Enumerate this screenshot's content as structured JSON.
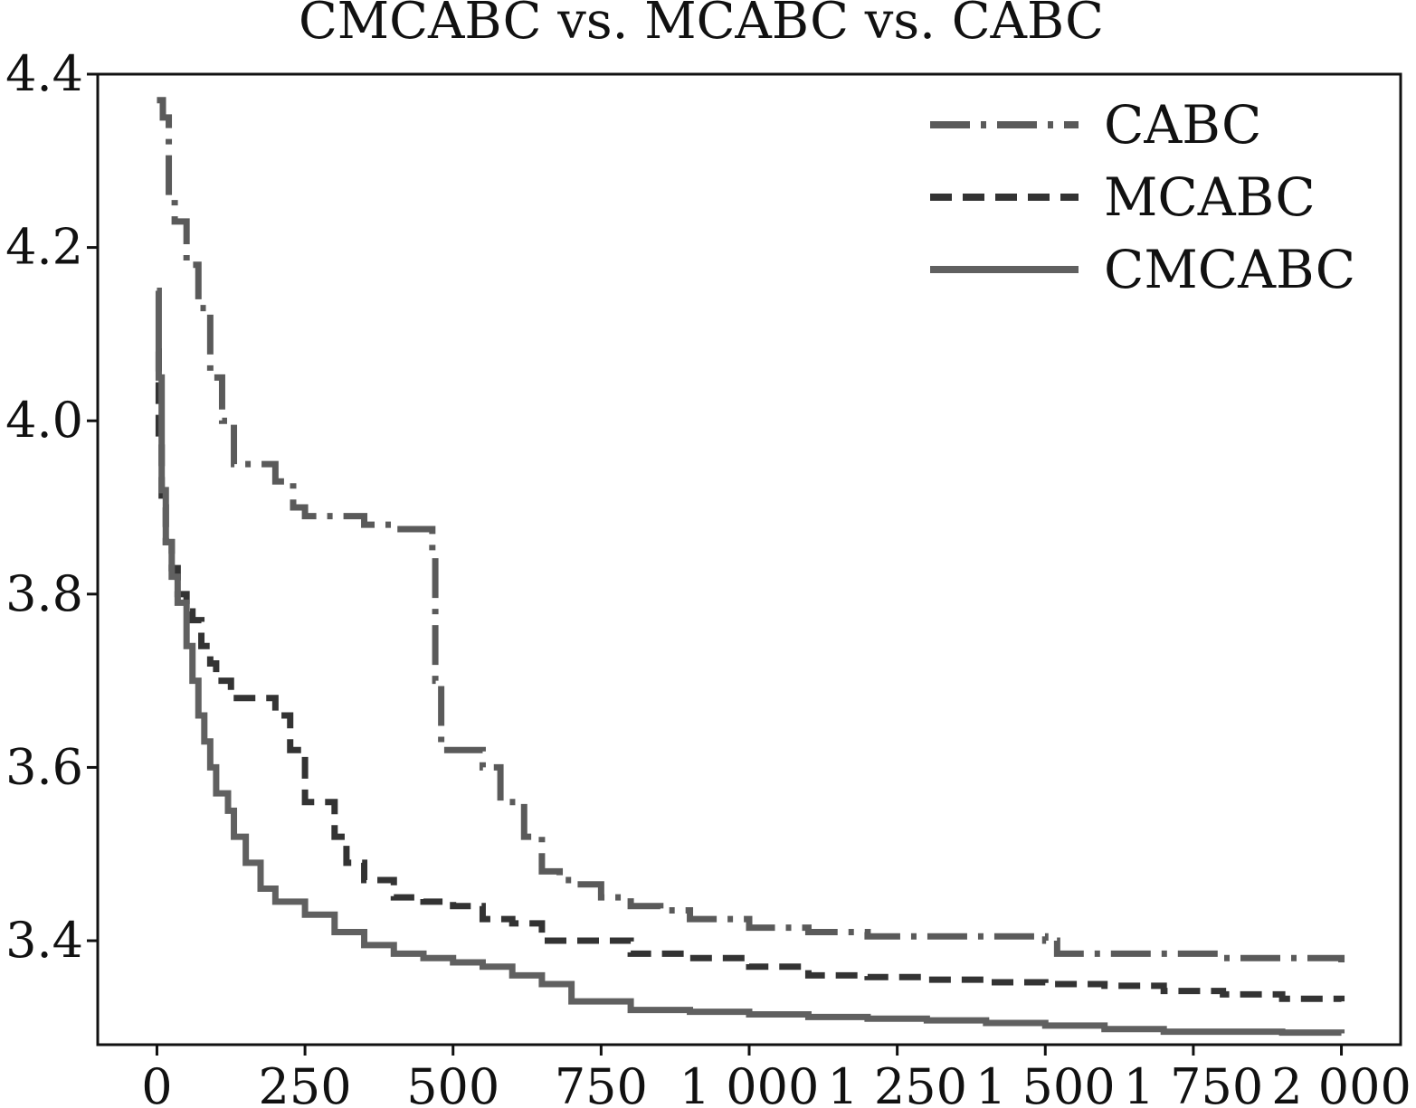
{
  "chart_data": {
    "type": "line",
    "title": "CMCABC vs. MCABC vs. CABC",
    "xlabel": "",
    "ylabel": "",
    "xlim": [
      -100,
      2100
    ],
    "ylim": [
      3.28,
      4.4
    ],
    "xticks": [
      0,
      250,
      500,
      750,
      1000,
      1250,
      1500,
      1750,
      2000
    ],
    "xtick_labels": [
      "0",
      "250",
      "500",
      "750",
      "1 000",
      "1 250",
      "1 500",
      "1 750",
      "2 000"
    ],
    "yticks": [
      3.4,
      3.6,
      3.8,
      4.0,
      4.2,
      4.4
    ],
    "ytick_labels": [
      "3.4",
      "3.6",
      "3.8",
      "4.0",
      "4.2",
      "4.4"
    ],
    "grid": false,
    "legend_position": "top-right",
    "series": [
      {
        "name": "CABC",
        "color": "#5a5a5a",
        "dash": "dashdot",
        "x": [
          0,
          10,
          20,
          30,
          50,
          70,
          90,
          110,
          130,
          150,
          200,
          230,
          250,
          300,
          350,
          400,
          460,
          465,
          470,
          480,
          550,
          580,
          620,
          650,
          680,
          700,
          750,
          800,
          850,
          900,
          1000,
          1100,
          1200,
          1300,
          1400,
          1500,
          1520,
          1600,
          1700,
          1800,
          1900,
          2000
        ],
        "y": [
          4.37,
          4.35,
          4.26,
          4.23,
          4.18,
          4.13,
          4.05,
          4.0,
          3.95,
          3.95,
          3.93,
          3.9,
          3.89,
          3.89,
          3.88,
          3.875,
          3.875,
          3.85,
          3.7,
          3.62,
          3.6,
          3.56,
          3.52,
          3.48,
          3.47,
          3.465,
          3.45,
          3.44,
          3.435,
          3.425,
          3.415,
          3.41,
          3.405,
          3.405,
          3.405,
          3.4,
          3.385,
          3.385,
          3.385,
          3.38,
          3.38,
          3.375
        ]
      },
      {
        "name": "MCABC",
        "color": "#333333",
        "dash": "dashed",
        "x": [
          0,
          3,
          8,
          15,
          25,
          35,
          50,
          60,
          75,
          90,
          100,
          125,
          150,
          200,
          225,
          250,
          300,
          320,
          350,
          400,
          450,
          500,
          550,
          600,
          650,
          700,
          800,
          900,
          1000,
          1100,
          1200,
          1300,
          1400,
          1500,
          1600,
          1700,
          1800,
          1900,
          2000
        ],
        "y": [
          4.08,
          3.98,
          3.9,
          3.86,
          3.83,
          3.8,
          3.78,
          3.77,
          3.74,
          3.72,
          3.7,
          3.68,
          3.68,
          3.66,
          3.62,
          3.56,
          3.52,
          3.49,
          3.47,
          3.45,
          3.445,
          3.44,
          3.425,
          3.42,
          3.4,
          3.4,
          3.385,
          3.38,
          3.37,
          3.36,
          3.358,
          3.355,
          3.352,
          3.35,
          3.348,
          3.342,
          3.338,
          3.333,
          3.33
        ]
      },
      {
        "name": "CMCABC",
        "color": "#606060",
        "solid": true,
        "x": [
          0,
          3,
          8,
          15,
          25,
          35,
          50,
          60,
          70,
          80,
          90,
          100,
          120,
          130,
          150,
          175,
          200,
          250,
          300,
          350,
          400,
          450,
          500,
          550,
          600,
          650,
          700,
          800,
          900,
          1000,
          1100,
          1200,
          1300,
          1400,
          1500,
          1600,
          1700,
          1800,
          1900,
          2000
        ],
        "y": [
          4.15,
          4.05,
          3.92,
          3.86,
          3.82,
          3.79,
          3.74,
          3.7,
          3.66,
          3.63,
          3.6,
          3.57,
          3.55,
          3.52,
          3.49,
          3.46,
          3.445,
          3.43,
          3.41,
          3.395,
          3.385,
          3.38,
          3.375,
          3.37,
          3.36,
          3.35,
          3.33,
          3.32,
          3.318,
          3.315,
          3.312,
          3.31,
          3.308,
          3.305,
          3.302,
          3.298,
          3.295,
          3.295,
          3.294,
          3.293
        ]
      }
    ]
  }
}
